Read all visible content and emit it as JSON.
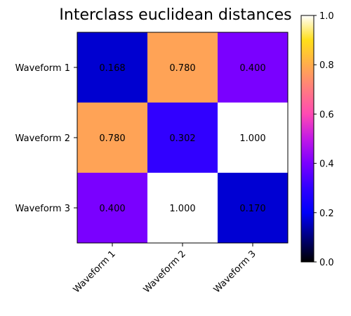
{
  "chart_data": {
    "type": "heatmap",
    "title": "Interclass euclidean distances",
    "rows": [
      "Waveform 1",
      "Waveform 2",
      "Waveform 3"
    ],
    "columns": [
      "Waveform 1",
      "Waveform 2",
      "Waveform 3"
    ],
    "values": [
      [
        0.168,
        0.78,
        0.4
      ],
      [
        0.78,
        0.302,
        1.0
      ],
      [
        0.4,
        1.0,
        0.17
      ]
    ],
    "cell_labels": [
      [
        "0.168",
        "0.780",
        "0.400"
      ],
      [
        "0.780",
        "0.302",
        "1.000"
      ],
      [
        "0.400",
        "1.000",
        "0.170"
      ]
    ],
    "colormap": "gnuplot2",
    "colorbar": {
      "range": [
        0.0,
        1.0
      ],
      "ticks": [
        0.0,
        0.2,
        0.4,
        0.6,
        0.8,
        1.0
      ],
      "tick_labels": [
        "0.0",
        "0.2",
        "0.4",
        "0.6",
        "0.8",
        "1.0"
      ],
      "placement": "right"
    },
    "xtick_rotation_deg": 45
  }
}
